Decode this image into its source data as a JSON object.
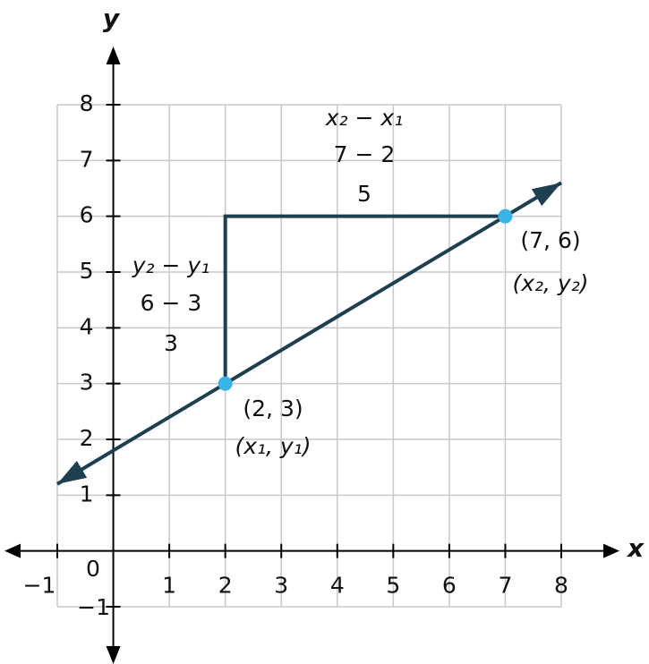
{
  "chart_data": {
    "type": "line",
    "x_label": "x",
    "y_label": "y",
    "origin_label": "0",
    "xlim": [
      -1,
      8
    ],
    "ylim": [
      -1,
      8
    ],
    "xticks": [
      {
        "value": -1,
        "label": "−1"
      },
      1,
      2,
      3,
      4,
      5,
      6,
      7,
      8
    ],
    "yticks": [
      {
        "value": -1,
        "label": "−1"
      },
      1,
      2,
      3,
      4,
      5,
      6,
      7,
      8
    ],
    "grid": true,
    "line": {
      "x": [
        -1,
        8
      ],
      "y": [
        1.2,
        6.6
      ],
      "color": "#1d3f4f"
    },
    "triangle": {
      "x": [
        2,
        2,
        7
      ],
      "y": [
        3,
        6,
        6
      ],
      "color": "#1d3f4f"
    },
    "points": {
      "x": [
        2,
        7
      ],
      "y": [
        3,
        6
      ],
      "color": "#3ab4e6"
    },
    "run_label": [
      "x₂ − x₁",
      "7 − 2",
      "5"
    ],
    "rise_label": [
      "y₂ − y₁",
      "6 − 3",
      "3"
    ],
    "point_labels": [
      [
        "(2, 3)",
        "(x₁, y₁)"
      ],
      [
        "(7, 6)",
        "(x₂, y₂)"
      ]
    ]
  }
}
